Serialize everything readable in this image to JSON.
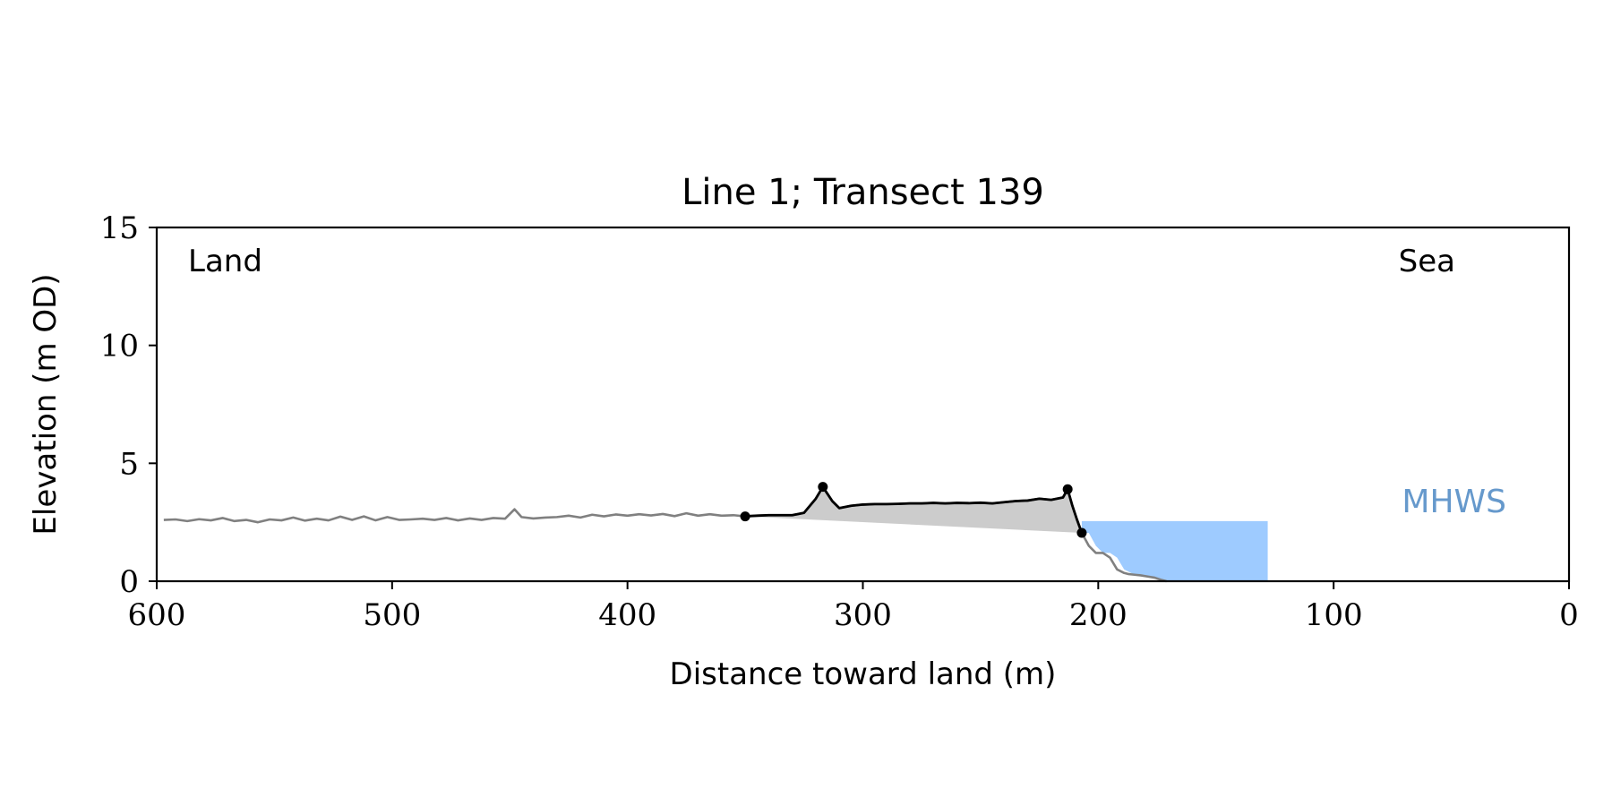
{
  "chart_data": {
    "type": "line",
    "title": "Line 1; Transect 139",
    "xlabel": "Distance toward land (m)",
    "ylabel": "Elevation (m OD)",
    "xlim": [
      600,
      0
    ],
    "ylim": [
      0,
      15
    ],
    "x_ticks": [
      600,
      500,
      400,
      300,
      200,
      100,
      0
    ],
    "y_ticks": [
      0,
      5,
      10,
      15
    ],
    "grid": false,
    "annotations": {
      "land": "Land",
      "sea": "Sea",
      "mhws": "MHWS"
    },
    "colors": {
      "profile": "#808080",
      "dune": "#000000",
      "dune_fill": "#cccccc",
      "water": "#9ecbff",
      "mhws_text": "#6699cc"
    },
    "mhws": {
      "elevation": 2.55,
      "x_start": 207,
      "x_end": 128
    },
    "series": [
      {
        "role": "profile",
        "x": [
          597,
          592,
          587,
          582,
          577,
          572,
          567,
          562,
          557,
          552,
          547,
          542,
          537,
          532,
          527,
          522,
          517,
          512,
          507,
          502,
          497,
          492,
          487,
          482,
          477,
          472,
          467,
          462,
          457,
          452,
          448,
          445,
          440,
          435,
          430,
          425,
          420,
          415,
          410,
          405,
          400,
          395,
          390,
          385,
          380,
          375,
          370,
          365,
          360,
          355,
          350,
          345,
          340,
          335,
          330,
          325,
          320,
          317,
          313,
          310,
          305,
          300,
          295,
          290,
          285,
          280,
          275,
          270,
          265,
          260,
          255,
          250,
          245,
          240,
          235,
          230,
          225,
          220,
          215,
          213,
          211,
          209,
          207,
          204,
          201,
          198,
          195,
          192,
          189,
          187,
          185,
          182,
          179,
          176,
          173,
          171
        ],
        "y": [
          2.6,
          2.62,
          2.55,
          2.63,
          2.58,
          2.68,
          2.55,
          2.6,
          2.5,
          2.62,
          2.58,
          2.7,
          2.57,
          2.65,
          2.58,
          2.74,
          2.6,
          2.75,
          2.58,
          2.72,
          2.6,
          2.62,
          2.65,
          2.6,
          2.68,
          2.58,
          2.66,
          2.6,
          2.68,
          2.65,
          3.05,
          2.72,
          2.66,
          2.7,
          2.72,
          2.78,
          2.7,
          2.82,
          2.75,
          2.83,
          2.78,
          2.84,
          2.79,
          2.85,
          2.76,
          2.88,
          2.78,
          2.84,
          2.78,
          2.8,
          2.75,
          2.78,
          2.8,
          2.8,
          2.8,
          2.9,
          3.5,
          4.0,
          3.4,
          3.1,
          3.2,
          3.25,
          3.27,
          3.27,
          3.28,
          3.3,
          3.3,
          3.32,
          3.3,
          3.32,
          3.31,
          3.33,
          3.3,
          3.35,
          3.4,
          3.42,
          3.5,
          3.45,
          3.55,
          3.9,
          3.2,
          2.6,
          2.05,
          1.5,
          1.2,
          1.2,
          1.0,
          0.5,
          0.35,
          0.3,
          0.28,
          0.25,
          0.2,
          0.15,
          0.05,
          0.0
        ]
      },
      {
        "role": "dune",
        "x": [
          350,
          345,
          340,
          335,
          330,
          325,
          320,
          317,
          313,
          310,
          305,
          300,
          295,
          290,
          285,
          280,
          275,
          270,
          265,
          260,
          255,
          250,
          245,
          240,
          235,
          230,
          225,
          220,
          215,
          213,
          211,
          209,
          207
        ],
        "y": [
          2.75,
          2.78,
          2.8,
          2.8,
          2.8,
          2.9,
          3.5,
          4.0,
          3.4,
          3.1,
          3.2,
          3.25,
          3.27,
          3.27,
          3.28,
          3.3,
          3.3,
          3.32,
          3.3,
          3.32,
          3.31,
          3.33,
          3.3,
          3.35,
          3.4,
          3.42,
          3.5,
          3.45,
          3.55,
          3.9,
          3.2,
          2.6,
          2.05
        ]
      }
    ],
    "key_points": [
      {
        "x": 350,
        "y": 2.75
      },
      {
        "x": 317,
        "y": 4.0
      },
      {
        "x": 213,
        "y": 3.9
      },
      {
        "x": 207,
        "y": 2.05
      }
    ]
  }
}
